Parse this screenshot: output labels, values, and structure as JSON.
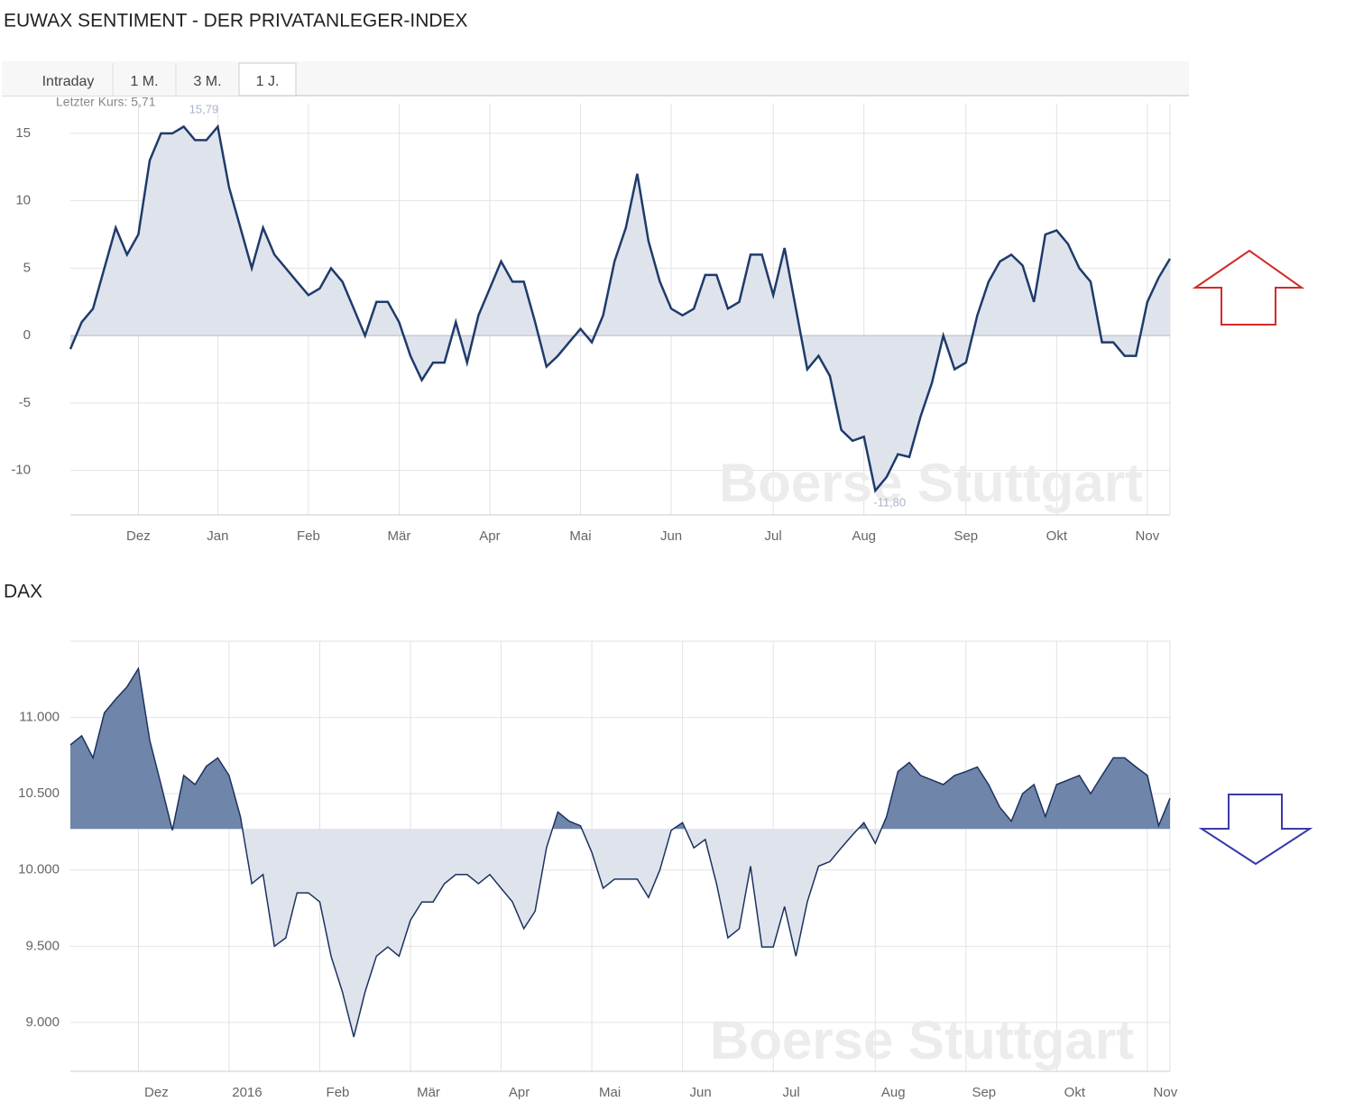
{
  "tabs": [
    "Intraday",
    "1 M.",
    "3 M.",
    "1 J."
  ],
  "active_tab": 3,
  "chart_data": [
    {
      "type": "area",
      "title": "EUWAX SENTIMENT - DER PRIVATANLEGER-INDEX",
      "subtitle": "Letzter Kurs: 5,71",
      "max_label": "15,79",
      "min_label": "-11,80",
      "watermark": "Boerse Stuttgart",
      "categories": [
        null,
        null,
        null,
        null,
        null,
        null,
        "Dez",
        null,
        null,
        null,
        null,
        null,
        null,
        "Jan",
        null,
        null,
        null,
        null,
        null,
        null,
        null,
        "Feb",
        null,
        null,
        null,
        null,
        null,
        null,
        null,
        "Mär",
        null,
        null,
        null,
        null,
        null,
        null,
        null,
        "Apr",
        null,
        null,
        null,
        null,
        null,
        null,
        null,
        "Mai",
        null,
        null,
        null,
        null,
        null,
        null,
        null,
        "Jun",
        null,
        null,
        null,
        null,
        null,
        null,
        null,
        null,
        "Jul",
        null,
        null,
        null,
        null,
        null,
        null,
        null,
        "Aug",
        null,
        null,
        null,
        null,
        null,
        null,
        null,
        null,
        "Sep",
        null,
        null,
        null,
        null,
        null,
        null,
        null,
        "Okt",
        null,
        null,
        null,
        null,
        null,
        null,
        null,
        "Nov",
        null,
        null
      ],
      "values": [
        -1,
        1,
        2,
        5,
        8,
        6,
        7.5,
        13,
        15,
        15,
        15.5,
        14.5,
        14.5,
        15.5,
        11,
        8,
        5,
        8,
        6,
        5,
        4,
        3,
        3.5,
        5,
        4,
        2,
        0,
        2.5,
        2.5,
        1,
        -1.5,
        -3.3,
        -2,
        -2,
        1,
        -2,
        1.5,
        3.5,
        5.5,
        4,
        4,
        1,
        -2.3,
        -1.5,
        -0.5,
        0.5,
        -0.5,
        1.5,
        5.5,
        8,
        12,
        7,
        4,
        2,
        1.5,
        2,
        4.5,
        4.5,
        2,
        2.5,
        6,
        6,
        3,
        6.5,
        2,
        -2.5,
        -1.5,
        -3,
        -7,
        -7.8,
        -7.5,
        -11.5,
        -10.5,
        -8.8,
        -9,
        -6,
        -3.5,
        0,
        -2.5,
        -2,
        1.5,
        4,
        5.5,
        6,
        5.2,
        2.5,
        7.5,
        7.8,
        6.8,
        5,
        4,
        -0.5,
        -0.5,
        -1.5,
        -1.5,
        2.5,
        4.3,
        5.7
      ],
      "baseline": 0,
      "color": "#1f3b6b",
      "fill_color": "#dfe4ec",
      "ylim": [
        -13.3,
        17.2
      ],
      "yticks": [
        -10,
        -5,
        0,
        5,
        10,
        15
      ],
      "grid": true
    },
    {
      "type": "area",
      "title": "DAX",
      "watermark": "Boerse Stuttgart",
      "categories": [
        null,
        null,
        null,
        null,
        null,
        null,
        "Dez",
        null,
        null,
        null,
        null,
        null,
        null,
        null,
        "2016",
        null,
        null,
        null,
        null,
        null,
        null,
        null,
        "Feb",
        null,
        null,
        null,
        null,
        null,
        null,
        null,
        "Mär",
        null,
        null,
        null,
        null,
        null,
        null,
        null,
        "Apr",
        null,
        null,
        null,
        null,
        null,
        null,
        null,
        "Mai",
        null,
        null,
        null,
        null,
        null,
        null,
        null,
        "Jun",
        null,
        null,
        null,
        null,
        null,
        null,
        null,
        "Jul",
        null,
        null,
        null,
        null,
        null,
        null,
        null,
        null,
        "Aug",
        null,
        null,
        null,
        null,
        null,
        null,
        null,
        "Sep",
        null,
        null,
        null,
        null,
        null,
        null,
        null,
        "Okt",
        null,
        null,
        null,
        null,
        null,
        null,
        null,
        "Nov",
        null,
        null
      ],
      "values": [
        10820,
        10880,
        10735,
        11030,
        11120,
        11200,
        11320,
        10850,
        10560,
        10260,
        10620,
        10560,
        10680,
        10735,
        10620,
        10350,
        9910,
        9970,
        9500,
        9555,
        9850,
        9850,
        9790,
        9435,
        9200,
        8905,
        9200,
        9435,
        9495,
        9435,
        9670,
        9790,
        9790,
        9910,
        9970,
        9970,
        9910,
        9970,
        9880,
        9790,
        9615,
        9730,
        10145,
        10380,
        10320,
        10290,
        10115,
        9880,
        9940,
        9940,
        9940,
        9820,
        10000,
        10260,
        10310,
        10145,
        10200,
        9910,
        9555,
        9615,
        10025,
        9495,
        9495,
        9760,
        9435,
        9790,
        10025,
        10055,
        10145,
        10230,
        10310,
        10175,
        10350,
        10645,
        10705,
        10620,
        10590,
        10560,
        10620,
        10645,
        10675,
        10560,
        10410,
        10320,
        10500,
        10560,
        10350,
        10560,
        10590,
        10620,
        10500,
        10620,
        10735,
        10735,
        10675,
        10620,
        10290,
        10470
      ],
      "baseline": 10268,
      "color": "#1c3260",
      "fill_color": "#dfe4ec",
      "fill_above_color": "#6f85a9",
      "ylim": [
        8680,
        11500
      ],
      "yticks": [
        {
          "value": 9000,
          "label": "9.000"
        },
        {
          "value": 9500,
          "label": "9.500"
        },
        {
          "value": 10000,
          "label": "10.000"
        },
        {
          "value": 10500,
          "label": "10.500"
        },
        {
          "value": 11000,
          "label": "11.000"
        }
      ],
      "grid": true
    }
  ]
}
